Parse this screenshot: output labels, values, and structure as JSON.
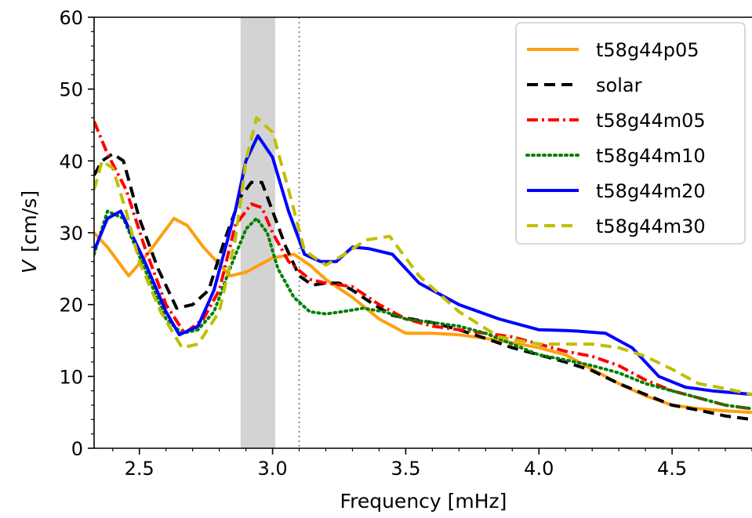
{
  "chart_data": {
    "type": "line",
    "xlabel": "Frequency  [mHz]",
    "ylabel_italic": "V",
    "ylabel_unit": "[cm/s]",
    "xlim": [
      2.33,
      4.8
    ],
    "ylim": [
      0,
      60
    ],
    "xticks": [
      2.5,
      3.0,
      3.5,
      4.0,
      4.5
    ],
    "xtick_labels": [
      "2.5",
      "3.0",
      "3.5",
      "4.0",
      "4.5"
    ],
    "yticks": [
      0,
      10,
      20,
      30,
      40,
      50,
      60
    ],
    "ytick_labels": [
      "0",
      "10",
      "20",
      "30",
      "40",
      "50",
      "60"
    ],
    "shaded_band": [
      2.88,
      3.01
    ],
    "vline": 3.1,
    "legend_position": "top-right",
    "grid": false,
    "series": [
      {
        "name": "t58g44p05",
        "color": "#ff9f0f",
        "dash": "solid",
        "x": [
          2.33,
          2.38,
          2.46,
          2.53,
          2.63,
          2.68,
          2.74,
          2.84,
          2.9,
          2.95,
          3.0,
          3.08,
          3.14,
          3.2,
          3.3,
          3.4,
          3.5,
          3.6,
          3.7,
          3.8,
          3.9,
          4.0,
          4.1,
          4.2,
          4.3,
          4.4,
          4.5,
          4.6,
          4.7,
          4.8
        ],
        "y": [
          30,
          28,
          24,
          27,
          32,
          31,
          28,
          24,
          24.5,
          25.5,
          26.5,
          27,
          25.5,
          23.5,
          21,
          18,
          16,
          16,
          15.8,
          15.3,
          14.7,
          14,
          13,
          11,
          9,
          7.3,
          6,
          5.5,
          5.2,
          5
        ]
      },
      {
        "name": "solar",
        "color": "#000000",
        "dash": "solid-dash",
        "x": [
          2.33,
          2.36,
          2.4,
          2.44,
          2.5,
          2.57,
          2.64,
          2.7,
          2.76,
          2.82,
          2.88,
          2.92,
          2.96,
          3.0,
          3.05,
          3.1,
          3.15,
          3.2,
          3.25,
          3.3,
          3.38,
          3.45,
          3.52,
          3.6,
          3.7,
          3.8,
          3.9,
          4.0,
          4.1,
          4.2,
          4.3,
          4.4,
          4.5,
          4.6,
          4.7,
          4.8
        ],
        "y": [
          38,
          40,
          41,
          40,
          32,
          25,
          19.5,
          20,
          22,
          29,
          35,
          37,
          37,
          33,
          28,
          24,
          22.7,
          23,
          23,
          22,
          20,
          18.5,
          18,
          17.5,
          16.5,
          15.3,
          14,
          13,
          12,
          10.8,
          9,
          7.5,
          6,
          5.3,
          4.5,
          4
        ]
      },
      {
        "name": "t58g44m05",
        "color": "#ff0000",
        "dash": "dashdot",
        "x": [
          2.33,
          2.38,
          2.45,
          2.52,
          2.6,
          2.67,
          2.74,
          2.8,
          2.86,
          2.92,
          2.96,
          3.0,
          3.06,
          3.14,
          3.2,
          3.3,
          3.4,
          3.5,
          3.6,
          3.7,
          3.8,
          3.9,
          4.0,
          4.1,
          4.2,
          4.3,
          4.4,
          4.5,
          4.6,
          4.7,
          4.8
        ],
        "y": [
          45.5,
          41,
          36,
          28,
          20,
          16,
          18,
          22,
          31,
          34,
          33.5,
          30,
          26,
          23.5,
          23,
          22.5,
          20,
          18,
          17,
          16.5,
          16,
          15.5,
          14.5,
          13.5,
          12.8,
          11.5,
          9.5,
          8,
          7,
          6,
          5.5
        ]
      },
      {
        "name": "t58g44m10",
        "color": "#008000",
        "dash": "dotted",
        "x": [
          2.33,
          2.38,
          2.44,
          2.52,
          2.6,
          2.66,
          2.72,
          2.78,
          2.84,
          2.9,
          2.94,
          2.98,
          3.02,
          3.08,
          3.14,
          3.2,
          3.26,
          3.34,
          3.42,
          3.5,
          3.6,
          3.7,
          3.8,
          3.9,
          4.0,
          4.1,
          4.2,
          4.3,
          4.4,
          4.5,
          4.6,
          4.7,
          4.8
        ],
        "y": [
          27,
          33,
          32,
          25,
          18,
          16,
          16.5,
          19,
          25,
          30.5,
          32,
          30,
          25,
          21,
          19,
          18.7,
          19,
          19.5,
          19,
          18,
          17.5,
          17,
          16,
          14.5,
          13,
          12.3,
          11.5,
          10.5,
          9,
          8,
          7,
          6,
          5.5
        ]
      },
      {
        "name": "t58g44m20",
        "color": "#0000ff",
        "dash": "solid",
        "x": [
          2.33,
          2.38,
          2.43,
          2.52,
          2.6,
          2.65,
          2.72,
          2.78,
          2.86,
          2.9,
          2.945,
          3.0,
          3.06,
          3.12,
          3.18,
          3.24,
          3.3,
          3.36,
          3.45,
          3.55,
          3.7,
          3.85,
          4.0,
          4.1,
          4.15,
          4.25,
          4.35,
          4.45,
          4.55,
          4.65,
          4.8
        ],
        "y": [
          27.5,
          32,
          33,
          26,
          19,
          15.8,
          17,
          22,
          33,
          40,
          43.5,
          40.5,
          33,
          27,
          26,
          26,
          28,
          27.8,
          27,
          23,
          20,
          18,
          16.5,
          16.4,
          16.3,
          16,
          14,
          10,
          8.5,
          8,
          7.5
        ]
      },
      {
        "name": "t58g44m30",
        "color": "#bfbf00",
        "dash": "dashed",
        "x": [
          2.33,
          2.36,
          2.4,
          2.45,
          2.5,
          2.58,
          2.66,
          2.72,
          2.8,
          2.86,
          2.9,
          2.94,
          3.0,
          3.06,
          3.12,
          3.2,
          3.27,
          3.35,
          3.44,
          3.55,
          3.7,
          3.85,
          4.0,
          4.1,
          4.2,
          4.3,
          4.4,
          4.5,
          4.6,
          4.7,
          4.8
        ],
        "y": [
          36,
          40,
          39,
          33,
          26,
          19,
          14,
          14.5,
          19,
          29,
          40,
          46,
          44,
          36,
          27.5,
          25.5,
          27,
          29,
          29.5,
          24,
          19,
          15.5,
          14.5,
          14.5,
          14.5,
          14,
          12.8,
          11,
          9,
          8.3,
          7.5
        ]
      }
    ]
  }
}
